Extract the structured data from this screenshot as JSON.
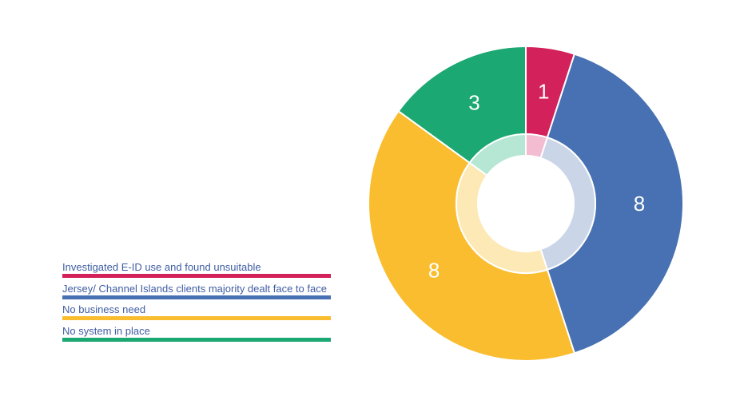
{
  "chart_data": {
    "type": "pie",
    "title": "",
    "categories": [
      "Investigated E-ID use and found unsuitable",
      "Jersey/ Channel Islands clients majority dealt face to face",
      "No business need",
      "No system in place"
    ],
    "values": [
      1,
      8,
      8,
      3
    ],
    "colors": [
      "#d3215b",
      "#4771b2",
      "#f9bd2f",
      "#1ca873"
    ],
    "inner_ring_colors": [
      "#f3bcd0",
      "#cbd5e8",
      "#fde9b6",
      "#b6e7d4"
    ],
    "legend_position": "left",
    "style": "donut"
  }
}
